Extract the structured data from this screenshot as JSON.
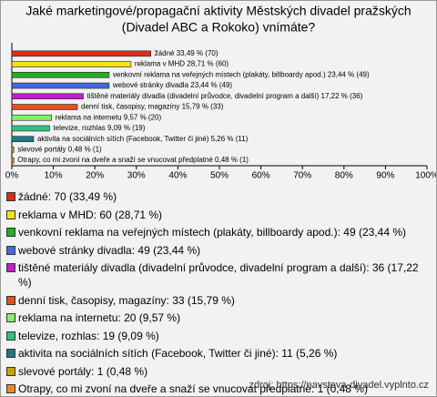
{
  "chart_data": {
    "type": "hbar",
    "title": [
      "Jaké marketingové/propagační aktivity Městských divadel pražských",
      "(Divadel ABC a Rokoko) vnímáte?"
    ],
    "categories": [
      "žádné",
      "reklama v MHD",
      "venkovní reklama na veřejných místech (plakáty, billboardy apod.)",
      "webové stránky divadla",
      "tištěné materiály divadla (divadelní průvodce, divadelní program a další)",
      "denní tisk, časopisy, magazíny",
      "reklama na internetu",
      "televize, rozhlas",
      "aktivita na sociálních sítích (Facebook, Twitter či jiné)",
      "slevové portály",
      "Otrapy, co mi zvoní na dveře a snaží se vnucovat předplatné"
    ],
    "values": [
      33.49,
      28.71,
      23.44,
      23.44,
      17.22,
      15.79,
      9.57,
      9.09,
      5.26,
      0.48,
      0.48
    ],
    "value_labels": [
      "žádné 33,49 % (70)",
      "reklama v MHD 28,71 % (60)",
      "venkovní reklama na veřejných místech (plakáty, billboardy apod.) 23,44 % (49)",
      "webové stránky divadla 23,44 % (49)",
      "tištěné materiály divadla (divadelní průvodce, divadelní program a další) 17,22 % (36)",
      "denní tisk, časopisy, magazíny 15,79 % (33)",
      "reklama na internetu 9,57 % (20)",
      "televize, rozhlas 9,09 % (19)",
      "aktivita na sociálních sítích (Facebook, Twitter či jiné) 5,26 % (11)",
      "slevové portály 0,48 % (1)",
      "Otrapy, co mi zvoní na dveře a snaží se vnucovat předplatné 0,48 % (1)"
    ],
    "legend": [
      "žádné: 70 (33,49 %)",
      "reklama v MHD: 60 (28,71 %)",
      "venkovní reklama na veřejných místech (plakáty, billboardy apod.): 49 (23,44 %)",
      "webové stránky divadla: 49 (23,44 %)",
      "tištěné materiály divadla (divadelní průvodce, divadelní program a další): 36 (17,22 %)",
      "denní tisk, časopisy, magazíny: 33 (15,79 %)",
      "reklama na internetu: 20 (9,57 %)",
      "televize, rozhlas: 19 (9,09 %)",
      "aktivita na sociálních sítích (Facebook, Twitter či jiné): 11 (5,26 %)",
      "slevové portály: 1 (0,48 %)",
      "Otrapy, co mi zvoní na dveře a snaží se vnucovat předplatné: 1 (0,48 %)"
    ],
    "colors": [
      "#e02a1a",
      "#f2e218",
      "#22b022",
      "#4466e0",
      "#c020c8",
      "#e45020",
      "#88ee66",
      "#30c080",
      "#207a88",
      "#c8a000",
      "#f08820"
    ],
    "xlim": [
      0,
      100
    ],
    "xticks": [
      {
        "value": 0,
        "label": "0%"
      },
      {
        "value": 10,
        "label": "10%"
      },
      {
        "value": 20,
        "label": "20%"
      },
      {
        "value": 30,
        "label": "30%"
      },
      {
        "value": 40,
        "label": "40%"
      },
      {
        "value": 50,
        "label": "50%"
      },
      {
        "value": 60,
        "label": "60%"
      },
      {
        "value": 70,
        "label": "70%"
      },
      {
        "value": 80,
        "label": "80%"
      },
      {
        "value": 90,
        "label": "90%"
      },
      {
        "value": 100,
        "label": "100%"
      }
    ],
    "source": "zdroj: https://navsteva-divadel.vyplnto.cz"
  }
}
